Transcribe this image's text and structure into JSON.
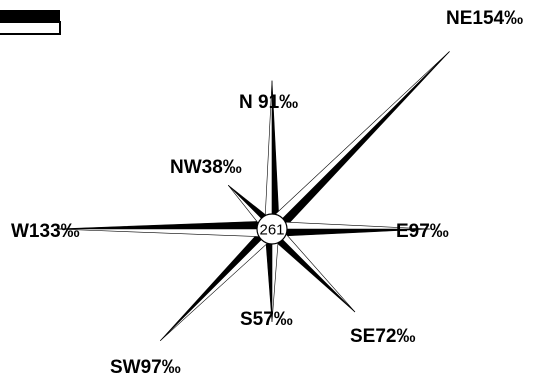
{
  "chart_data": {
    "type": "wind-rose",
    "center_value": "261",
    "directions": [
      {
        "id": "N",
        "label": "N 91‰",
        "value": 91
      },
      {
        "id": "NE",
        "label": "NE154‰",
        "value": 154
      },
      {
        "id": "E",
        "label": "E97‰",
        "value": 97
      },
      {
        "id": "SE",
        "label": "SE72‰",
        "value": 72
      },
      {
        "id": "S",
        "label": "S57‰",
        "value": 57
      },
      {
        "id": "SW",
        "label": "SW97‰",
        "value": 97
      },
      {
        "id": "W",
        "label": "W133‰",
        "value": 133
      },
      {
        "id": "NW",
        "label": "NW38‰",
        "value": 38
      }
    ],
    "unit": "‰",
    "legend": {
      "position": "top-left",
      "filled_color": "#000000",
      "empty_color": "#ffffff"
    },
    "colors": {
      "dark": "#000000",
      "light": "#ffffff"
    }
  }
}
